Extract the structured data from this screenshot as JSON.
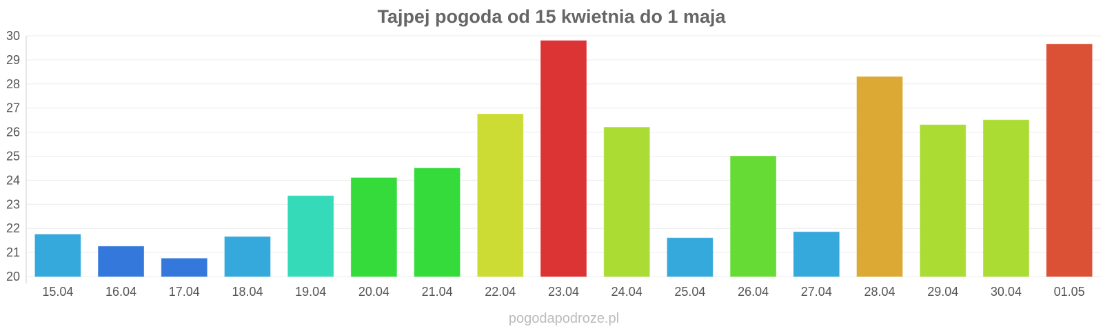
{
  "chart_data": {
    "type": "bar",
    "title": "Tajpej pogoda od 15 kwietnia do 1 maja",
    "xlabel": "",
    "ylabel": "",
    "ylim": [
      20,
      30
    ],
    "yticks": [
      20,
      21,
      22,
      23,
      24,
      25,
      26,
      27,
      28,
      29,
      30
    ],
    "grid": true,
    "legend": "none",
    "categories": [
      "15.04",
      "16.04",
      "17.04",
      "18.04",
      "19.04",
      "20.04",
      "21.04",
      "22.04",
      "23.04",
      "24.04",
      "25.04",
      "26.04",
      "27.04",
      "28.04",
      "29.04",
      "30.04",
      "01.05"
    ],
    "values": [
      21.75,
      21.25,
      20.75,
      21.65,
      23.35,
      24.1,
      24.5,
      26.75,
      29.8,
      26.2,
      21.6,
      25.0,
      21.85,
      28.3,
      26.3,
      26.5,
      29.65
    ],
    "colors": [
      "#35a9dc",
      "#3478dc",
      "#3478dc",
      "#35a9dc",
      "#35dbb9",
      "#35db3a",
      "#35db3a",
      "#ccdc34",
      "#dc3435",
      "#aadc34",
      "#35a9dc",
      "#66db35",
      "#35a9dc",
      "#dba934",
      "#aadc34",
      "#aadc34",
      "#db5135"
    ]
  },
  "watermark": "pogodapodroze.pl"
}
